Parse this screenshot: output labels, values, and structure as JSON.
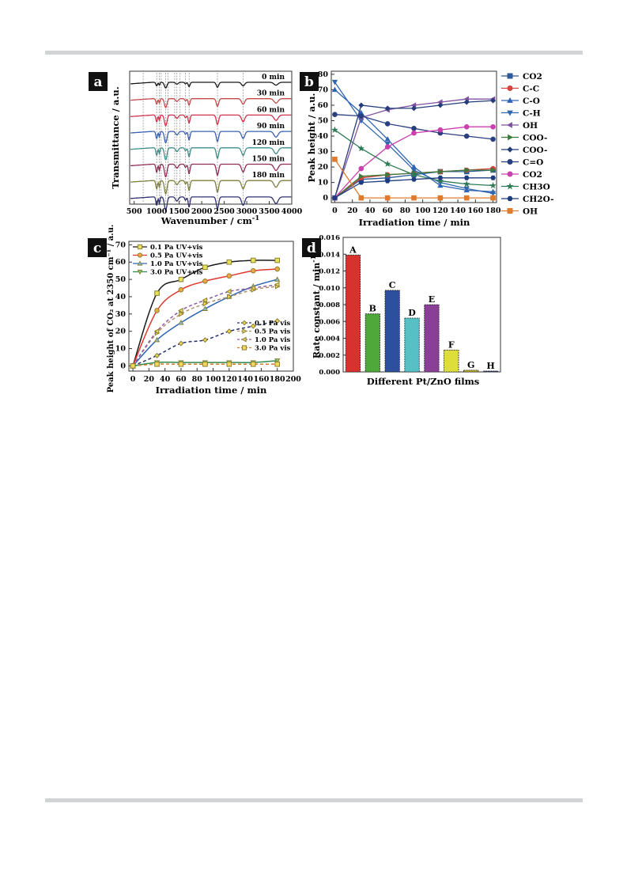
{
  "panels": {
    "a": {
      "letter": "a",
      "xlabel": "Wavenumber / cm",
      "xlabel_sup": "-1",
      "ylabel": "Transmittance / a.u.",
      "xticks": [
        500,
        1000,
        1500,
        2000,
        2500,
        3000,
        3500,
        4000
      ],
      "xlim": [
        400,
        4000
      ],
      "bands": [
        700,
        1000,
        1060,
        1100,
        1200,
        1250,
        1400,
        1450,
        1520,
        1640,
        1720,
        2350,
        2920
      ],
      "traces": [
        {
          "label": "0 min",
          "color": "#1a1a1a",
          "depth": 0.45
        },
        {
          "label": "30 min",
          "color": "#c44a4a",
          "depth": 0.7
        },
        {
          "label": "60 min",
          "color": "#d2324a",
          "depth": 0.85
        },
        {
          "label": "90 min",
          "color": "#3a60b0",
          "depth": 0.9
        },
        {
          "label": "120 min",
          "color": "#3f8f88",
          "depth": 0.95
        },
        {
          "label": "150 min",
          "color": "#8f2e55",
          "depth": 1.0
        },
        {
          "label": "180 min",
          "color": "#7d7f3d",
          "depth": 1.05
        },
        {
          "label": "",
          "color": "#303070",
          "depth": 1.05
        }
      ]
    },
    "b": {
      "letter": "b",
      "xlabel": "Irradiation time / min",
      "ylabel": "Peak height / a.u.",
      "xticks": [
        0,
        20,
        40,
        60,
        80,
        100,
        120,
        140,
        160,
        180
      ],
      "yticks": [
        0,
        10,
        20,
        30,
        40,
        50,
        60,
        70,
        80
      ],
      "xlim": [
        -4,
        184
      ],
      "ylim": [
        -3,
        82
      ]
    },
    "c": {
      "letter": "c",
      "xlabel": "Irradiation time / min",
      "ylabel": "Peak height of CO₂ at 2350 cm⁻¹ / a.u.",
      "xticks": [
        0,
        20,
        40,
        60,
        80,
        100,
        120,
        140,
        160,
        180,
        200
      ],
      "yticks": [
        0,
        10,
        20,
        30,
        40,
        50,
        60,
        70
      ],
      "xlim": [
        -5,
        200
      ],
      "ylim": [
        -3,
        72
      ]
    },
    "d": {
      "letter": "d",
      "xlabel": "Different Pt/ZnO films",
      "ylabel": "Rate constant / min",
      "ylabel_sup": "-1",
      "yticks": [
        "0.000",
        "0.002",
        "0.004",
        "0.006",
        "0.008",
        "0.010",
        "0.012",
        "0.014",
        "0.016"
      ],
      "ylim": [
        0,
        0.016
      ]
    }
  },
  "chart_data": [
    {
      "panel": "a",
      "type": "line",
      "xlabel": "Wavenumber / cm-1",
      "ylabel": "Transmittance / a.u.",
      "xlim": [
        400,
        4000
      ],
      "series": [
        {
          "name": "0 min"
        },
        {
          "name": "30 min"
        },
        {
          "name": "60 min"
        },
        {
          "name": "90 min"
        },
        {
          "name": "120 min"
        },
        {
          "name": "150 min"
        },
        {
          "name": "180 min"
        }
      ]
    },
    {
      "panel": "b",
      "type": "line",
      "xlabel": "Irradiation time / min",
      "ylabel": "Peak height / a.u.",
      "x": [
        0,
        30,
        60,
        90,
        120,
        150,
        180
      ],
      "series": [
        {
          "name": "CO2",
          "color": "#2d5a9a",
          "marker": "square",
          "values": [
            0,
            12,
            13,
            15,
            17,
            17,
            18
          ]
        },
        {
          "name": "C-C",
          "color": "#d9413b",
          "marker": "circle",
          "values": [
            0,
            13,
            15,
            16,
            17,
            18,
            19
          ]
        },
        {
          "name": "C-O",
          "color": "#2f63b5",
          "marker": "triangle-up",
          "values": [
            70,
            55,
            38,
            20,
            8,
            5,
            4
          ]
        },
        {
          "name": "C-H",
          "color": "#3068b0",
          "marker": "triangle-down",
          "values": [
            75,
            50,
            35,
            18,
            10,
            6,
            3
          ]
        },
        {
          "name": "OH",
          "color": "#8050a0",
          "marker": "triangle-left",
          "values": [
            0,
            52,
            57,
            60,
            62,
            64,
            64
          ]
        },
        {
          "name": "COO-",
          "color": "#3a7a3a",
          "marker": "triangle-right",
          "values": [
            0,
            14,
            15,
            16,
            17,
            18,
            18
          ]
        },
        {
          "name": "COO-",
          "color": "#243d7a",
          "marker": "diamond",
          "values": [
            0,
            60,
            58,
            58,
            60,
            62,
            63
          ]
        },
        {
          "name": "C=O",
          "color": "#2a3f80",
          "marker": "circle",
          "values": [
            54,
            53,
            48,
            45,
            42,
            40,
            38
          ]
        },
        {
          "name": "CO2",
          "color": "#cc3fae",
          "marker": "circle",
          "values": [
            0,
            19,
            33,
            42,
            44,
            46,
            46
          ]
        },
        {
          "name": "CH3O",
          "color": "#2e7a55",
          "marker": "star",
          "values": [
            44,
            32,
            22,
            15,
            11,
            9,
            8
          ]
        },
        {
          "name": "CH2O-",
          "color": "#1e3c80",
          "marker": "hexagon",
          "values": [
            0,
            10,
            11,
            12,
            13,
            13,
            13
          ]
        },
        {
          "name": "OH",
          "color": "#e07b2c",
          "marker": "square",
          "values": [
            25,
            0,
            0,
            0,
            0,
            0,
            0
          ]
        }
      ],
      "xlim": [
        0,
        180
      ],
      "ylim": [
        0,
        80
      ]
    },
    {
      "panel": "c",
      "type": "line",
      "xlabel": "Irradiation time / min",
      "ylabel": "Peak height of CO2 at 2350 cm-1 / a.u.",
      "x": [
        0,
        30,
        60,
        90,
        120,
        150,
        180
      ],
      "legend_col1_note": "UV+vis",
      "series": [
        {
          "name": "0.1 Pa UV+vis",
          "color": "#1a1a1a",
          "fill": "#e8e25a",
          "marker": "square",
          "dashed": false,
          "values": [
            0,
            42,
            50,
            57,
            60,
            61,
            61
          ]
        },
        {
          "name": "0.5 Pa UV+vis",
          "color": "#e0362c",
          "fill": "#f2a540",
          "marker": "circle",
          "dashed": false,
          "values": [
            0,
            32,
            44,
            49,
            52,
            55,
            56
          ]
        },
        {
          "name": "1.0 Pa UV+vis",
          "color": "#2f63b5",
          "fill": "#7fc0e6",
          "marker": "triangle-up",
          "dashed": false,
          "values": [
            0,
            15,
            25,
            33,
            40,
            46,
            50
          ]
        },
        {
          "name": "3.0 Pa UV+vis",
          "color": "#2e8a50",
          "fill": "#7fcf7a",
          "marker": "triangle-down",
          "dashed": false,
          "values": [
            0,
            2,
            2,
            2,
            2,
            2,
            3
          ]
        },
        {
          "name": "0.1 Pa vis",
          "color": "#27306e",
          "fill": "#e8d55a",
          "marker": "diamond",
          "dashed": true,
          "values": [
            0,
            6,
            13,
            15,
            20,
            23,
            26
          ]
        },
        {
          "name": "0.5 Pa vis",
          "color": "#b09070",
          "fill": "#f2d85a",
          "marker": "triangle-right",
          "dashed": true,
          "values": [
            0,
            19,
            30,
            36,
            40,
            44,
            46
          ]
        },
        {
          "name": "1.0 Pa vis",
          "color": "#8c5aa0",
          "fill": "#f2d85a",
          "marker": "triangle-left",
          "dashed": true,
          "values": [
            0,
            20,
            32,
            38,
            43,
            45,
            47
          ]
        },
        {
          "name": "3.0 Pa vis",
          "color": "#d07a2a",
          "fill": "#f2d85a",
          "marker": "square",
          "dashed": true,
          "values": [
            0,
            1,
            1,
            1,
            1,
            1,
            1
          ]
        }
      ],
      "xlim": [
        0,
        200
      ],
      "ylim": [
        0,
        70
      ]
    },
    {
      "panel": "d",
      "type": "bar",
      "xlabel": "Different Pt/ZnO films",
      "ylabel": "Rate constant / min-1",
      "categories": [
        "A",
        "B",
        "C",
        "D",
        "E",
        "F",
        "G",
        "H"
      ],
      "values": [
        0.0139,
        0.0069,
        0.0097,
        0.0064,
        0.008,
        0.0026,
        0.0002,
        0.0001
      ],
      "colors": [
        "#d8322f",
        "#4ea83a",
        "#2c4f9e",
        "#57c0c4",
        "#8a3f96",
        "#dede3a",
        "#c0b030",
        "#304080"
      ],
      "ylim": [
        0,
        0.016
      ]
    }
  ]
}
